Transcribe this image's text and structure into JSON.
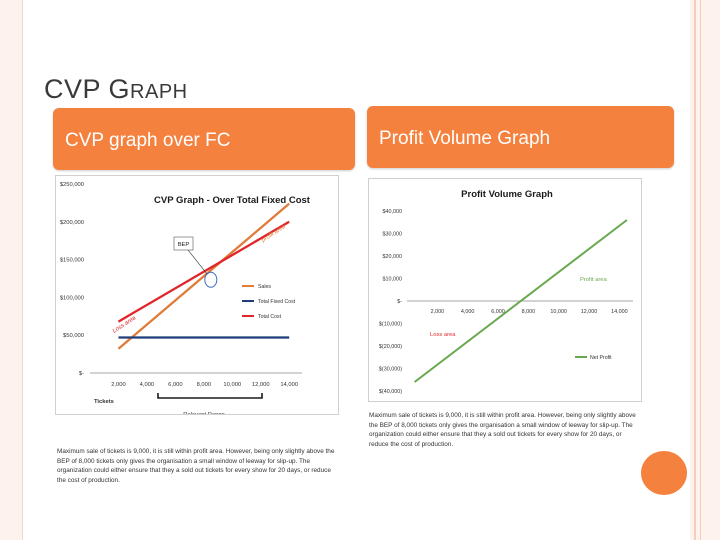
{
  "slide": {
    "title_big": "CVP G",
    "title_rest": "RAPH",
    "accent_color": "#f5813f"
  },
  "left_panel": {
    "header": "CVP graph over FC",
    "caption": "Maximum sale of tickets is 9,000, it is still within profit area. However, being only slightly above the BEP of 8,000 tickets only gives the organisation a small window of leeway for slip-up. The organization could either ensure that they a sold out tickets for every show for 20 days, or reduce the cost of production."
  },
  "right_panel": {
    "header": "Profit Volume Graph",
    "caption": "Maximum sale of tickets is 9,000, it is still within profit area. However, being only slightly above the BEP of 8,000 tickets only gives the organisation a small window of leeway for slip-up. The organization could either ensure that they a sold out tickets for every show for 20 days, or reduce the cost of production."
  },
  "chart_data": [
    {
      "type": "line",
      "title": "CVP Graph - Over Total Fixed Cost",
      "xlabel": "Tickets",
      "ylabel": "",
      "x": [
        2000,
        4000,
        6000,
        8000,
        10000,
        12000,
        14000
      ],
      "x_tick_labels": [
        "2,000",
        "4,000",
        "6,000",
        "8,000",
        "10,000",
        "12,000",
        "14,000"
      ],
      "ylim": [
        0,
        250000
      ],
      "y_ticks": [
        0,
        50000,
        100000,
        150000,
        200000,
        250000
      ],
      "y_tick_labels": [
        "$-",
        "$50,000",
        "$100,000",
        "$150,000",
        "$200,000",
        "$250,000"
      ],
      "series": [
        {
          "name": "Sales",
          "color": "#e07b39",
          "x": [
            2000,
            14000
          ],
          "values": [
            32000,
            224000
          ]
        },
        {
          "name": "Total Fixed Cost",
          "color": "#1f3f7a",
          "x": [
            2000,
            14000
          ],
          "values": [
            47000,
            47000
          ]
        },
        {
          "name": "Total Cost",
          "color": "#e0262b",
          "x": [
            2000,
            14000
          ],
          "values": [
            68000,
            200000
          ]
        }
      ],
      "legend_position": "right",
      "annotations": {
        "bep": "BEP",
        "profit_area": "profit area",
        "loss_area": "Loss area",
        "relevant_range": "Relevant Range"
      }
    },
    {
      "type": "line",
      "title": "Profit Volume Graph",
      "xlabel": "",
      "ylabel": "",
      "x": [
        2000,
        4000,
        6000,
        8000,
        10000,
        12000,
        14000
      ],
      "x_tick_labels": [
        "2,000",
        "4,000",
        "6,000",
        "8,000",
        "10,000",
        "12,000",
        "14,000"
      ],
      "ylim": [
        -40000,
        40000
      ],
      "y_ticks": [
        -40000,
        -30000,
        -20000,
        -10000,
        0,
        10000,
        20000,
        30000,
        40000
      ],
      "y_tick_labels": [
        "$(40,000)",
        "$(30,000)",
        "$(20,000)",
        "$(10,000)",
        "$-",
        "$10,000",
        "$20,000",
        "$30,000",
        "$40,000"
      ],
      "series": [
        {
          "name": "Net Profit",
          "color": "#6aa84f",
          "x": [
            500,
            14500
          ],
          "values": [
            -36000,
            36000
          ]
        }
      ],
      "legend_position": "bottom-right",
      "annotations": {
        "profit_area": "Profit area",
        "loss_area": "Loss area"
      }
    }
  ]
}
